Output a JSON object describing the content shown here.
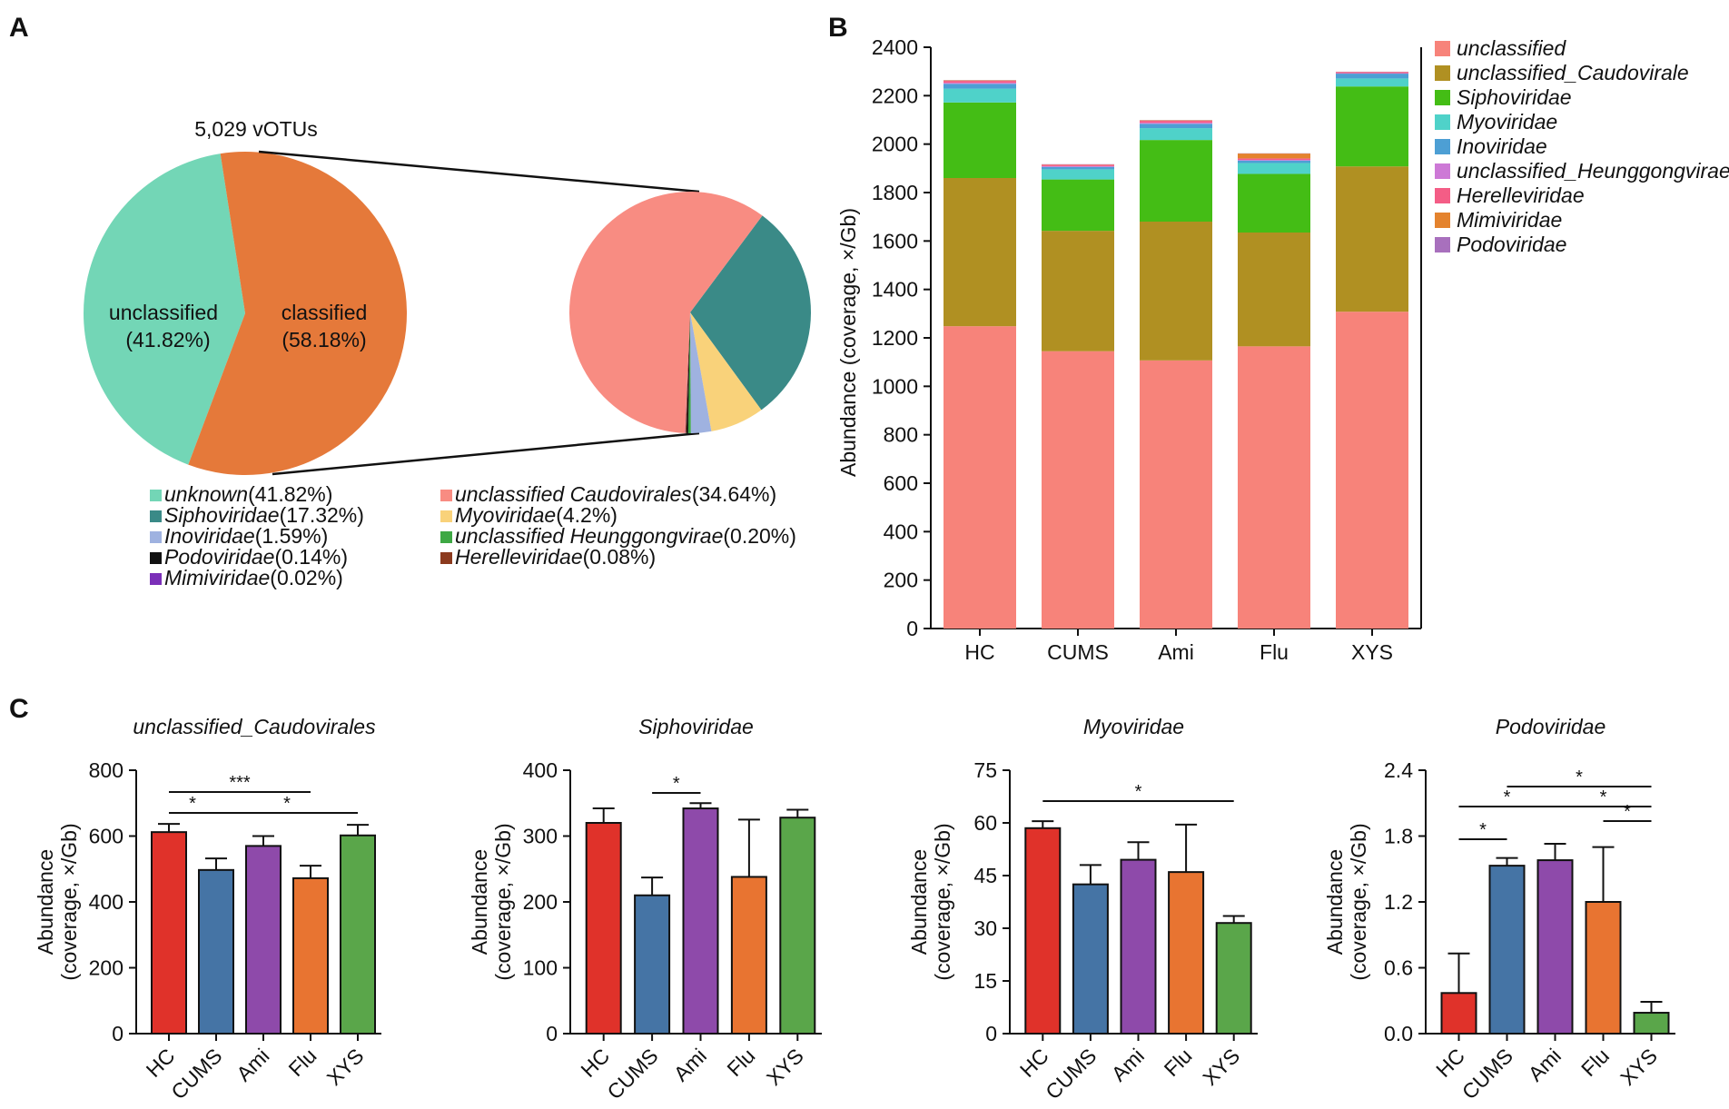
{
  "panels": {
    "A": "A",
    "B": "B",
    "C": "C"
  },
  "chart_data": [
    {
      "type": "pie",
      "id": "A-main",
      "title": "5,029 vOTUs",
      "slices": [
        {
          "label_line1": "unclassified",
          "label_line2": "(41.82%)",
          "value": 41.82,
          "color": "#73d6b6"
        },
        {
          "label_line1": "classified",
          "label_line2": "(58.18%)",
          "value": 58.18,
          "color": "#e5793a"
        }
      ]
    },
    {
      "type": "pie",
      "id": "A-sub",
      "slices": [
        {
          "name": "unclassified Caudovirales",
          "value": 34.64,
          "color": "#f88c82"
        },
        {
          "name": "Siphoviridae",
          "value": 17.32,
          "color": "#3a8a87"
        },
        {
          "name": "Myoviridae",
          "value": 4.2,
          "color": "#f9d27a"
        },
        {
          "name": "Inoviridae",
          "value": 1.59,
          "color": "#9fb2e0"
        },
        {
          "name": "unclassified Heunggongvirae",
          "value": 0.2,
          "color": "#3ea844"
        },
        {
          "name": "Podoviridae",
          "value": 0.14,
          "color": "#111111"
        },
        {
          "name": "Herelleviridae",
          "value": 0.08,
          "color": "#8b3a1e"
        },
        {
          "name": "Mimiviridae",
          "value": 0.02,
          "color": "#7b2fb8"
        }
      ],
      "legend": [
        {
          "name": "unknown",
          "pct": "(41.82%)",
          "color": "#73d6b6"
        },
        {
          "name": "Siphoviridae",
          "pct": "(17.32%)",
          "color": "#3a8a87"
        },
        {
          "name": "Inoviridae",
          "pct": "(1.59%)",
          "color": "#9fb2e0"
        },
        {
          "name": "Podoviridae",
          "pct": "(0.14%)",
          "color": "#111111"
        },
        {
          "name": "Mimiviridae",
          "pct": "(0.02%)",
          "color": "#7b2fb8"
        },
        {
          "name": "unclassified Caudovirales",
          "pct": "(34.64%)",
          "color": "#f88c82"
        },
        {
          "name": "Myoviridae",
          "pct": "(4.2%)",
          "color": "#f9d27a"
        },
        {
          "name": "unclassified Heunggongvirae",
          "pct": "(0.20%)",
          "color": "#3ea844"
        },
        {
          "name": "Herelleviridae",
          "pct": "(0.08%)",
          "color": "#8b3a1e"
        }
      ]
    },
    {
      "type": "bar",
      "id": "B",
      "stacked": true,
      "categories": [
        "HC",
        "CUMS",
        "Ami",
        "Flu",
        "XYS"
      ],
      "ylabel": "Abundance (coverage, ×/Gb)",
      "ylim": [
        0,
        2400
      ],
      "yticks": [
        0,
        200,
        400,
        600,
        800,
        1000,
        1200,
        1400,
        1600,
        1800,
        2000,
        2200,
        2400
      ],
      "series": [
        {
          "name": "unclassified",
          "color": "#f7837a",
          "values": [
            1248,
            1145,
            1107,
            1165,
            1308
          ]
        },
        {
          "name": "unclassified_Caudovirale",
          "color": "#b09022",
          "values": [
            612,
            497,
            573,
            470,
            600
          ]
        },
        {
          "name": "Siphoviridae",
          "color": "#44bd15",
          "values": [
            312,
            212,
            337,
            242,
            330
          ]
        },
        {
          "name": "Myoviridae",
          "color": "#4fd2c9",
          "values": [
            57,
            42,
            49,
            45,
            33
          ]
        },
        {
          "name": "Inoviridae",
          "color": "#4d9fd4",
          "values": [
            20,
            10,
            18,
            10,
            20
          ]
        },
        {
          "name": "unclassified_Heunggongvirae",
          "color": "#cd79d6",
          "values": [
            4,
            3,
            4,
            3,
            2
          ]
        },
        {
          "name": "Herelleviridae",
          "color": "#f45d86",
          "values": [
            8,
            6,
            8,
            6,
            4
          ]
        },
        {
          "name": "Mimiviridae",
          "color": "#e4832e",
          "values": [
            2,
            1,
            2,
            20,
            1
          ]
        },
        {
          "name": "Podoviridae",
          "color": "#a870bd",
          "values": [
            1,
            1,
            1,
            1,
            1
          ]
        }
      ]
    },
    {
      "type": "bar",
      "id": "C1",
      "title": "unclassified_Caudovirales",
      "categories": [
        "HC",
        "CUMS",
        "Ami",
        "Flu",
        "XYS"
      ],
      "ylabel_line1": "Abundance",
      "ylabel_line2": "(coverage, ×/Gb)",
      "ylim": [
        0,
        800
      ],
      "yticks": [
        "0",
        "200",
        "400",
        "600",
        "800"
      ],
      "values": [
        612,
        497,
        570,
        472,
        602
      ],
      "errors": [
        25,
        35,
        30,
        38,
        32
      ],
      "sig": [
        {
          "from": 0,
          "to": 1,
          "level": 1,
          "label": "*"
        },
        {
          "from": 0,
          "to": 3,
          "level": 2,
          "label": "***"
        },
        {
          "from": 1,
          "to": 4,
          "level": 1,
          "label": "*"
        }
      ]
    },
    {
      "type": "bar",
      "id": "C2",
      "title": "Siphoviridae",
      "categories": [
        "HC",
        "CUMS",
        "Ami",
        "Flu",
        "XYS"
      ],
      "ylabel_line1": "Abundance",
      "ylabel_line2": "(coverage, ×/Gb)",
      "ylim": [
        0,
        400
      ],
      "yticks": [
        "0",
        "100",
        "200",
        "300",
        "400"
      ],
      "values": [
        320,
        210,
        342,
        238,
        328
      ],
      "errors": [
        22,
        27,
        8,
        87,
        12
      ],
      "sig": [
        {
          "from": 1,
          "to": 2,
          "level": 1,
          "label": "*"
        }
      ]
    },
    {
      "type": "bar",
      "id": "C3",
      "title": "Myoviridae",
      "categories": [
        "HC",
        "CUMS",
        "Ami",
        "Flu",
        "XYS"
      ],
      "ylabel_line1": "Abundance",
      "ylabel_line2": "(coverage, ×/Gb)",
      "ylim": [
        0,
        75
      ],
      "yticks": [
        "0",
        "15",
        "30",
        "45",
        "60",
        "75"
      ],
      "values": [
        58.5,
        42.5,
        49.5,
        46,
        31.5
      ],
      "errors": [
        2,
        5.5,
        5,
        13.5,
        2
      ],
      "sig": [
        {
          "from": 0,
          "to": 4,
          "level": 1,
          "label": "*"
        }
      ]
    },
    {
      "type": "bar",
      "id": "C4",
      "title": "Podoviridae",
      "categories": [
        "HC",
        "CUMS",
        "Ami",
        "Flu",
        "XYS"
      ],
      "ylabel_line1": "Abundance",
      "ylabel_line2": "(coverage, ×/Gb)",
      "ylim": [
        0,
        2.4
      ],
      "yticks": [
        "0.0",
        "0.6",
        "1.2",
        "1.8",
        "2.4"
      ],
      "values": [
        0.37,
        1.53,
        1.58,
        1.2,
        0.19
      ],
      "errors": [
        0.36,
        0.07,
        0.15,
        0.5,
        0.1
      ],
      "sig": [
        {
          "from": 0,
          "to": 1,
          "level": 1,
          "label": "*"
        },
        {
          "from": 0,
          "to": 2,
          "level": 3,
          "label": "*"
        },
        {
          "from": 1,
          "to": 4,
          "level": 4,
          "label": "*"
        },
        {
          "from": 2,
          "to": 4,
          "level": 3,
          "label": "*"
        },
        {
          "from": 3,
          "to": 4,
          "level": 2,
          "label": "*"
        }
      ]
    }
  ],
  "colors": {
    "HC": "#e0322a",
    "CUMS": "#4574a5",
    "Ami": "#8e4aaa",
    "Flu": "#e87431",
    "XYS": "#5aa64a"
  }
}
